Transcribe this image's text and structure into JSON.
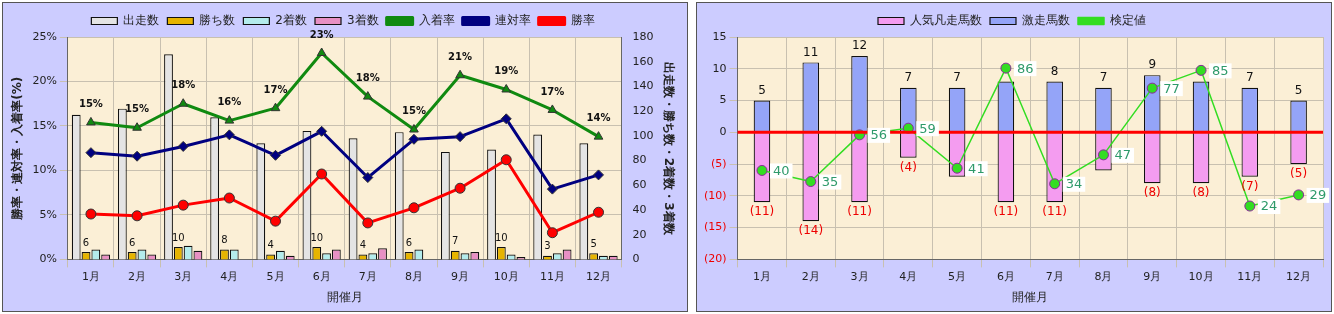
{
  "chart_data": [
    {
      "type": "bar",
      "categories": [
        "1月",
        "2月",
        "3月",
        "4月",
        "5月",
        "6月",
        "7月",
        "8月",
        "9月",
        "10月",
        "11月",
        "12月"
      ],
      "xlabel": "開催月",
      "ylabel": "勝率・連対率・入着率(%)",
      "y2label": "出走数・勝ち数・2着数・3着数",
      "ylim": [
        0,
        25
      ],
      "yticks": [
        {
          "value": 0,
          "label": "0%"
        },
        {
          "value": 5,
          "label": "5%"
        },
        {
          "value": 10,
          "label": "10%"
        },
        {
          "value": 15,
          "label": "15%"
        },
        {
          "value": 20,
          "label": "20%"
        },
        {
          "value": 25,
          "label": "25%"
        }
      ],
      "y2lim": [
        0,
        180
      ],
      "y2ticks": [
        0,
        20,
        40,
        60,
        80,
        100,
        120,
        140,
        160,
        180
      ],
      "grid": true,
      "legend": "top",
      "series": [
        {
          "name": "出走数",
          "axis": "y2",
          "color": "#e4e4e4",
          "values": [
            117,
            122,
            166,
            115,
            94,
            104,
            98,
            103,
            87,
            89,
            101,
            94
          ]
        },
        {
          "name": "勝ち数",
          "axis": "y2",
          "color": "#e6b400",
          "values": [
            6,
            6,
            10,
            8,
            4,
            10,
            4,
            6,
            7,
            10,
            3,
            5
          ],
          "value_labels": [
            "6",
            "6",
            "10",
            "8",
            "4",
            "10",
            "4",
            "6",
            "7",
            "10",
            "3",
            "5"
          ]
        },
        {
          "name": "2着数",
          "axis": "y2",
          "color": "#b4ecec",
          "values": [
            8,
            8,
            11,
            8,
            7,
            5,
            5,
            8,
            5,
            4,
            5,
            3
          ]
        },
        {
          "name": "3着数",
          "axis": "y2",
          "color": "#e890c4",
          "values": [
            4,
            4,
            7,
            0,
            3,
            8,
            9,
            0,
            6,
            2,
            8,
            3
          ]
        },
        {
          "name": "入着率",
          "type": "line",
          "axis": "y",
          "color": "#108a10",
          "marker": "triangle",
          "values": [
            15.4,
            14.8,
            17.5,
            15.6,
            17.0,
            23.2,
            18.3,
            14.6,
            20.7,
            19.1,
            16.8,
            13.8
          ],
          "value_labels": [
            "15%",
            "15%",
            "18%",
            "16%",
            "17%",
            "23%",
            "18%",
            "15%",
            "21%",
            "19%",
            "17%",
            "14%"
          ]
        },
        {
          "name": "連対率",
          "type": "line",
          "axis": "y",
          "color": "#000080",
          "marker": "diamond",
          "values": [
            12.0,
            11.6,
            12.7,
            14.0,
            11.7,
            14.4,
            9.2,
            13.5,
            13.8,
            15.8,
            7.9,
            9.5
          ]
        },
        {
          "name": "勝率",
          "type": "line",
          "axis": "y",
          "color": "#ff0000",
          "marker": "circle",
          "values": [
            5.1,
            4.9,
            6.1,
            6.9,
            4.3,
            9.6,
            4.1,
            5.8,
            8.0,
            11.2,
            3.0,
            5.3
          ]
        }
      ]
    },
    {
      "type": "bar",
      "stacked": true,
      "categories": [
        "1月",
        "2月",
        "3月",
        "4月",
        "5月",
        "6月",
        "7月",
        "8月",
        "9月",
        "10月",
        "11月",
        "12月"
      ],
      "xlabel": "開催月",
      "ylim": [
        -20,
        15
      ],
      "yticks": [
        {
          "value": -20,
          "label": "(20)"
        },
        {
          "value": -15,
          "label": "(15)"
        },
        {
          "value": -10,
          "label": "(10)"
        },
        {
          "value": -5,
          "label": "(5)"
        },
        0,
        5,
        10,
        15
      ],
      "y2lim": [
        0,
        100
      ],
      "grid": true,
      "legend": "top",
      "ref_lines": [
        {
          "axis": "y",
          "value": 0,
          "color": "#ff0000"
        }
      ],
      "series": [
        {
          "name": "人気凡走馬数",
          "color": "#f49cf0",
          "values": [
            -11,
            -14,
            -11,
            -4,
            -7,
            -11,
            -11,
            -6,
            -8,
            -8,
            -7,
            -5
          ],
          "value_labels": [
            "(11)",
            "(14)",
            "(11)",
            "(4)",
            null,
            "(11)",
            "(11)",
            null,
            "(8)",
            "(8)",
            "(7)",
            "(5)"
          ]
        },
        {
          "name": "激走馬数",
          "color": "#94a4f8",
          "values": [
            5,
            11,
            12,
            7,
            7,
            8,
            8,
            7,
            9,
            8,
            7,
            5
          ],
          "value_labels": [
            "5",
            "11",
            "12",
            "7",
            "7",
            null,
            "8",
            "7",
            "9",
            null,
            "7",
            "5"
          ]
        },
        {
          "name": "検定値",
          "type": "line",
          "axis": "y2",
          "color": "#33dd22",
          "marker": "circle",
          "values": [
            40,
            35,
            56,
            59,
            41,
            86,
            34,
            47,
            77,
            85,
            24,
            29
          ],
          "value_labels": [
            "40",
            "35",
            "56",
            "59",
            "41",
            "86",
            "34",
            "47",
            "77",
            "85",
            "24",
            "29"
          ]
        }
      ]
    }
  ]
}
